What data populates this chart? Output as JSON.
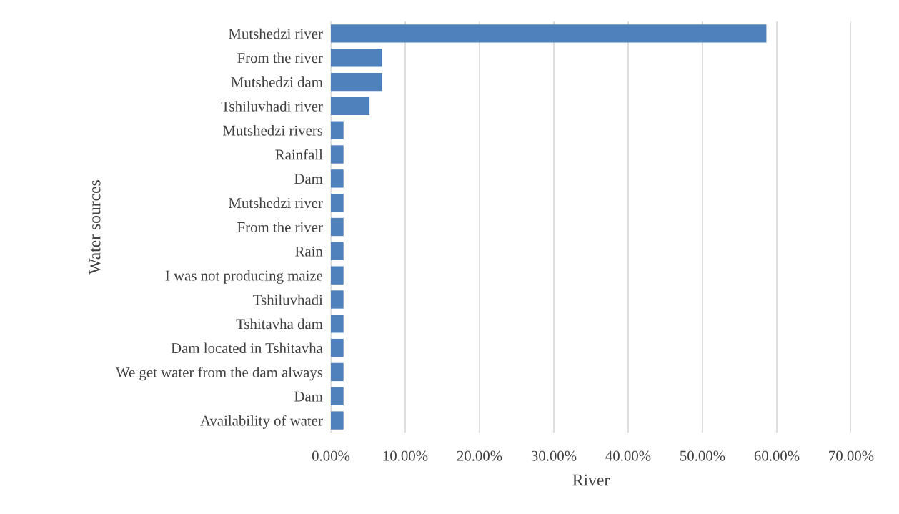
{
  "chart_data": {
    "type": "bar",
    "orientation": "horizontal",
    "xlabel": "River",
    "ylabel": "Water sources",
    "categories": [
      "Mutshedzi river",
      "From the river",
      "Mutshedzi dam",
      "Tshiluvhadi river",
      "Mutshedzi rivers",
      "Rainfall",
      "Dam",
      "Mutshedzi river",
      "From the river",
      "Rain",
      "I was not producing maize",
      "Tshiluvhadi",
      "Tshitavha dam",
      "Dam located in Tshitavha",
      "We get water from the dam always",
      "Dam",
      "Availability of water"
    ],
    "values": [
      58.6,
      6.9,
      6.9,
      5.2,
      1.7,
      1.7,
      1.7,
      1.7,
      1.7,
      1.7,
      1.7,
      1.7,
      1.7,
      1.7,
      1.7,
      1.7,
      1.7
    ],
    "color": "#4f81bd",
    "xlim": [
      0,
      70
    ],
    "xticks": [
      {
        "value": 0,
        "label": "0.00%"
      },
      {
        "value": 10,
        "label": "10.00%"
      },
      {
        "value": 20,
        "label": "20.00%"
      },
      {
        "value": 30,
        "label": "30.00%"
      },
      {
        "value": 40,
        "label": "40.00%"
      },
      {
        "value": 50,
        "label": "50.00%"
      },
      {
        "value": 60,
        "label": "60.00%"
      },
      {
        "value": 70,
        "label": "70.00%"
      }
    ],
    "grid": "x"
  }
}
